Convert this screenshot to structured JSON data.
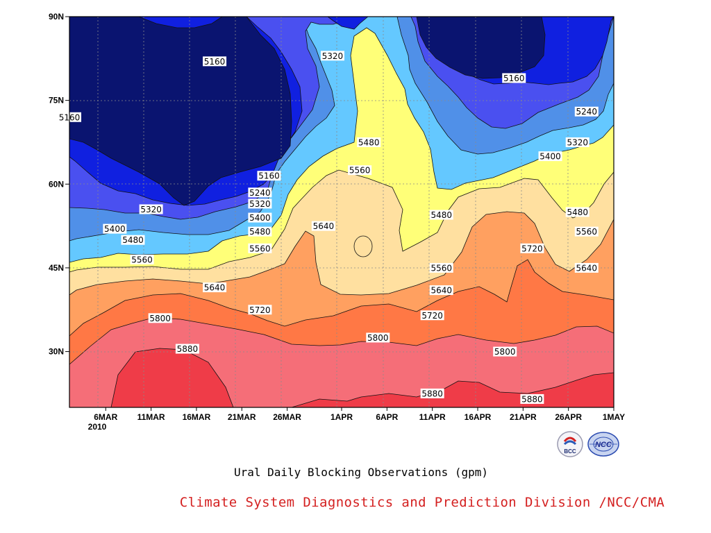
{
  "chart_data": {
    "type": "heatmap",
    "subtitle": "Ural Daily Blocking Observations (gpm)",
    "credit": "Climate System Diagnostics and Prediction Division /NCC/CMA",
    "x_axis": {
      "ticks": [
        "6MAR",
        "11MAR",
        "16MAR",
        "21MAR",
        "26MAR",
        "1APR",
        "6APR",
        "11APR",
        "16APR",
        "21APR",
        "26APR",
        "1MAY"
      ],
      "year_label": "2010",
      "range": [
        "2010-03-02",
        "2010-05-01"
      ]
    },
    "y_axis": {
      "ticks": [
        "30N",
        "45N",
        "60N",
        "75N",
        "90N"
      ],
      "tick_values": [
        30,
        45,
        60,
        75,
        90
      ],
      "range": [
        20,
        90
      ]
    },
    "grid": true,
    "contour_levels": [
      5160,
      5240,
      5320,
      5400,
      5480,
      5560,
      5640,
      5720,
      5800,
      5880
    ],
    "level_colors": [
      "#0a1470",
      "#1020e0",
      "#4a50f0",
      "#5090e8",
      "#64c8ff",
      "#ffff78",
      "#ffe0a0",
      "#ffa060",
      "#ff7845",
      "#f56e78",
      "#ef3c48"
    ],
    "contour_labels": [
      {
        "text": "5160",
        "date": "2010-03-18",
        "lat": 82
      },
      {
        "text": "5320",
        "date": "2010-03-31",
        "lat": 83
      },
      {
        "text": "5160",
        "date": "2010-03-02",
        "lat": 72
      },
      {
        "text": "5160",
        "date": "2010-04-20",
        "lat": 79
      },
      {
        "text": "5240",
        "date": "2010-04-28",
        "lat": 73
      },
      {
        "text": "5320",
        "date": "2010-04-27",
        "lat": 67.5
      },
      {
        "text": "5400",
        "date": "2010-04-24",
        "lat": 65
      },
      {
        "text": "5480",
        "date": "2010-04-04",
        "lat": 67.5
      },
      {
        "text": "5560",
        "date": "2010-04-03",
        "lat": 62.5
      },
      {
        "text": "5160",
        "date": "2010-03-24",
        "lat": 61.5
      },
      {
        "text": "5240",
        "date": "2010-03-23",
        "lat": 58.5
      },
      {
        "text": "5320",
        "date": "2010-03-23",
        "lat": 56.5
      },
      {
        "text": "5400",
        "date": "2010-03-23",
        "lat": 54
      },
      {
        "text": "5480",
        "date": "2010-03-23",
        "lat": 51.5
      },
      {
        "text": "5560",
        "date": "2010-03-23",
        "lat": 48.5
      },
      {
        "text": "5320",
        "date": "2010-03-11",
        "lat": 55.5
      },
      {
        "text": "5400",
        "date": "2010-03-07",
        "lat": 52
      },
      {
        "text": "5480",
        "date": "2010-03-09",
        "lat": 50
      },
      {
        "text": "5560",
        "date": "2010-03-10",
        "lat": 46.5
      },
      {
        "text": "5640",
        "date": "2010-03-18",
        "lat": 41.5
      },
      {
        "text": "5640",
        "date": "2010-03-30",
        "lat": 52.5
      },
      {
        "text": "5480",
        "date": "2010-04-12",
        "lat": 54.5
      },
      {
        "text": "5560",
        "date": "2010-04-12",
        "lat": 45
      },
      {
        "text": "5640",
        "date": "2010-04-12",
        "lat": 41
      },
      {
        "text": "5720",
        "date": "2010-04-22",
        "lat": 48.5
      },
      {
        "text": "5480",
        "date": "2010-04-27",
        "lat": 55
      },
      {
        "text": "5560",
        "date": "2010-04-28",
        "lat": 51.5
      },
      {
        "text": "5640",
        "date": "2010-04-28",
        "lat": 45
      },
      {
        "text": "5720",
        "date": "2010-03-23",
        "lat": 37.5
      },
      {
        "text": "5720",
        "date": "2010-04-11",
        "lat": 36.5
      },
      {
        "text": "5800",
        "date": "2010-03-12",
        "lat": 36
      },
      {
        "text": "5800",
        "date": "2010-04-05",
        "lat": 32.5
      },
      {
        "text": "5800",
        "date": "2010-04-19",
        "lat": 30
      },
      {
        "text": "5880",
        "date": "2010-03-15",
        "lat": 30.5
      },
      {
        "text": "5880",
        "date": "2010-04-11",
        "lat": 22.5
      },
      {
        "text": "5880",
        "date": "2010-04-22",
        "lat": 21.5
      }
    ]
  },
  "logos": {
    "bcc": {
      "text": "BCC",
      "icon": "bcc-logo-icon"
    },
    "ncc": {
      "text": "NCC",
      "icon": "ncc-logo-icon"
    }
  }
}
